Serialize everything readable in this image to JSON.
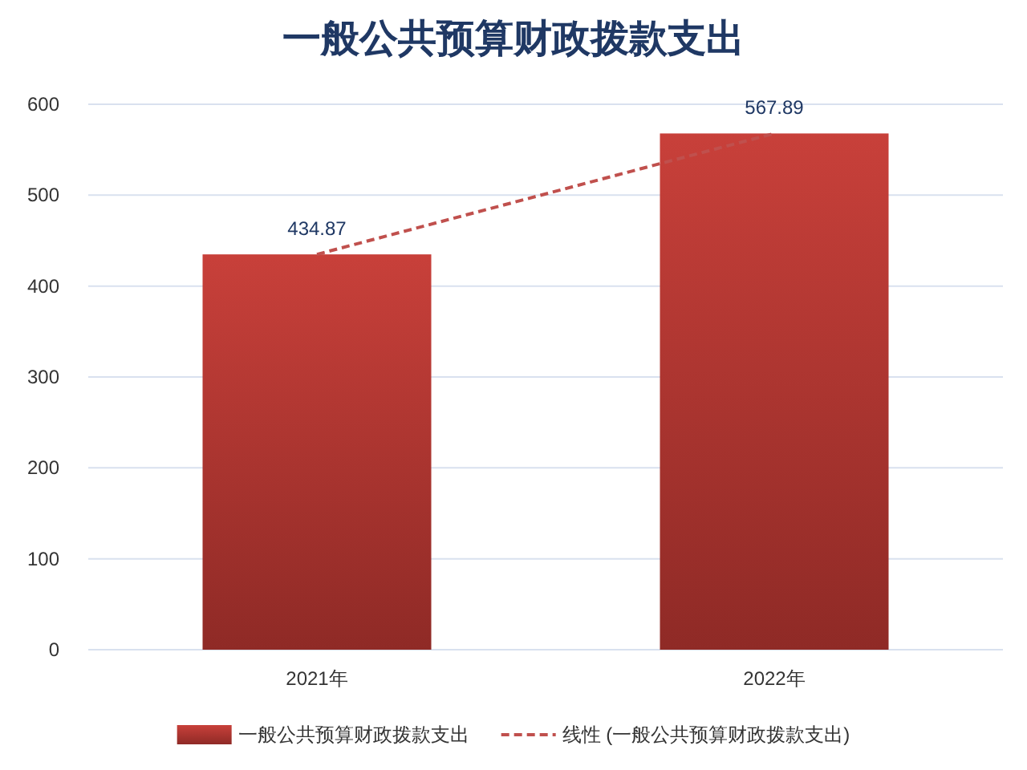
{
  "chart_data": {
    "type": "bar",
    "title": "一般公共预算财政拨款支出",
    "categories": [
      "2021年",
      "2022年"
    ],
    "series": [
      {
        "name": "一般公共预算财政拨款支出",
        "color": "#c8403a",
        "values": [
          434.87,
          567.89
        ],
        "value_labels": [
          "434.87",
          "567.89"
        ]
      },
      {
        "name": "线性 (一般公共预算财政拨款支出)",
        "type": "line",
        "color": "#c0504d",
        "line_style": "dashed",
        "marker": "none",
        "values": [
          434.87,
          567.89
        ]
      }
    ],
    "ylim": [
      0,
      600
    ],
    "yticks": [
      0,
      100,
      200,
      300,
      400,
      500,
      600
    ],
    "grid": "y",
    "legend": "bottom"
  }
}
